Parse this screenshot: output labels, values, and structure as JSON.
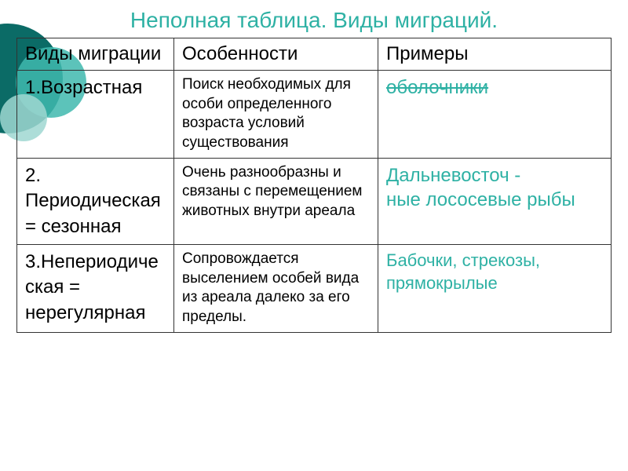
{
  "slide": {
    "title": "Неполная таблица. Виды миграций.",
    "title_color": "#2eb1a4",
    "title_fontsize": 28
  },
  "decoration": {
    "circles": [
      {
        "color": "#0b6b66",
        "opacity": 1.0
      },
      {
        "color": "#3fb8ae",
        "opacity": 0.85
      },
      {
        "color": "#9fd7d1",
        "opacity": 0.85
      }
    ]
  },
  "table": {
    "type": "table",
    "border_color": "#333333",
    "header_fontsize": 24,
    "type_fontsize": 24,
    "feature_fontsize": 19,
    "example_fontsize": 24,
    "example_color": "#2eb1a4",
    "text_color": "#000000",
    "columns": [
      "Виды миграции",
      "Особенности",
      "Примеры"
    ],
    "rows": [
      {
        "type": "1.Возрастная",
        "feature": "Поиск необходимых для особи определенного возраста условий существования",
        "example": "оболочники",
        "example_strike": true
      },
      {
        "type": "2. Периодическая = сезонная",
        "feature": "Очень разнообразны и связаны с перемещением животных внутри ареала",
        "example": "Дальневосточ -\nные лососевые рыбы",
        "example_strike": false
      },
      {
        "type": "3.Непериодиче\nская = нерегулярная",
        "feature": "Сопровождается выселением особей вида из ареала далеко за его пределы.",
        "example": "Бабочки, стрекозы, прямокрылые",
        "example_strike": false
      }
    ]
  }
}
